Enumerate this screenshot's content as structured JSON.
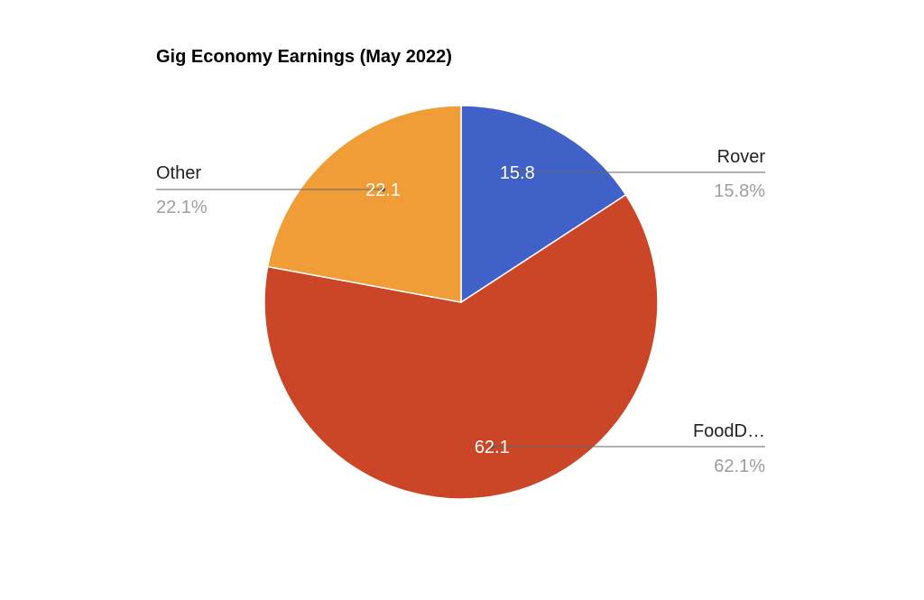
{
  "chart_data": {
    "type": "pie",
    "title": "Gig Economy Earnings (May 2022)",
    "slices": [
      {
        "label": "Rover",
        "value": 15.8,
        "percent_label": "15.8%",
        "value_label": "15.8",
        "color": "#4062c8"
      },
      {
        "label": "FoodD…",
        "value": 62.1,
        "percent_label": "62.1%",
        "value_label": "62.1",
        "color": "#cb4627"
      },
      {
        "label": "Other",
        "value": 22.1,
        "percent_label": "22.1%",
        "value_label": "22.1",
        "color": "#f09d38"
      }
    ],
    "legend": "labeled-leader-lines",
    "start_angle_deg": 0,
    "direction": "clockwise"
  }
}
